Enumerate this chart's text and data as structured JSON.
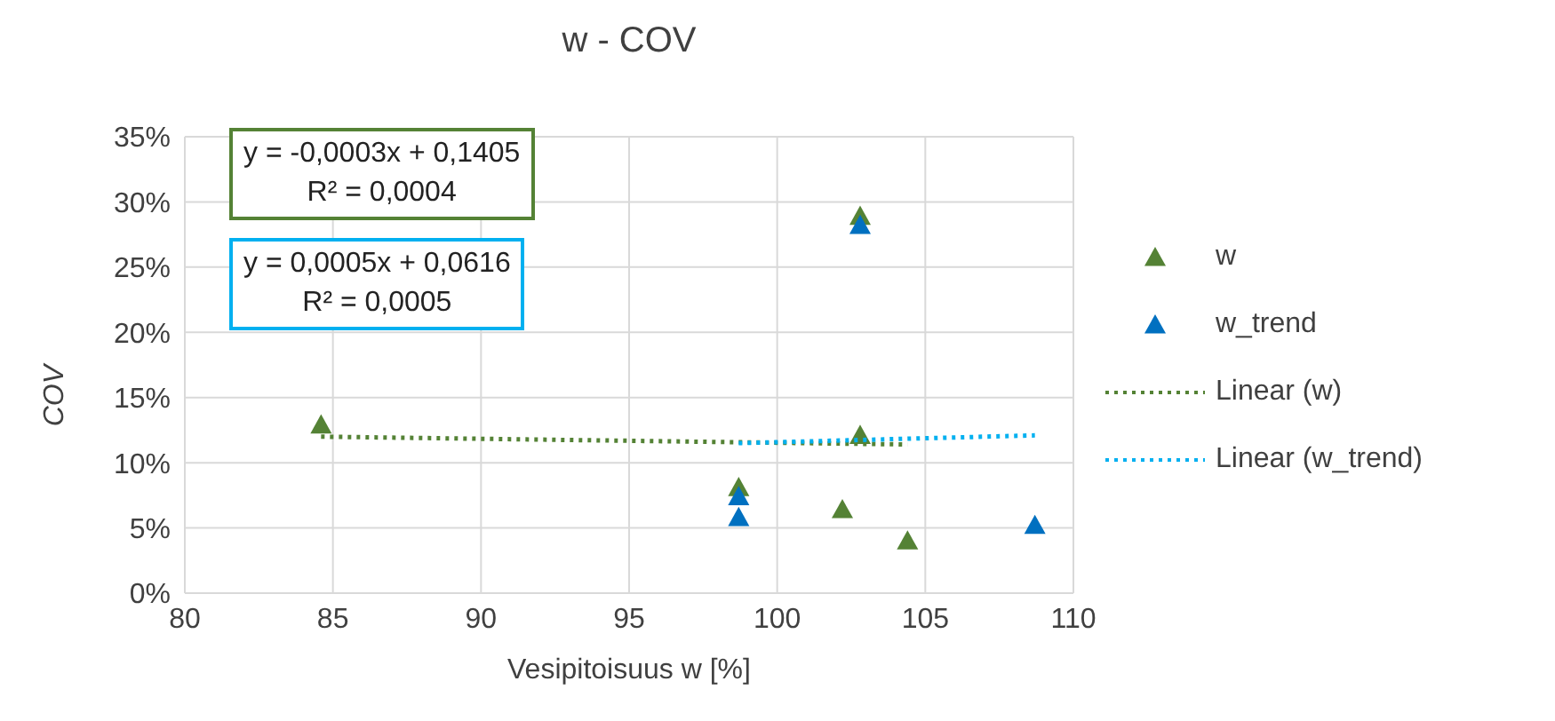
{
  "chart_data": {
    "type": "scatter",
    "title": "w - COV",
    "xlabel": "Vesipitoisuus w [%]",
    "ylabel": "COV",
    "xlim": [
      80,
      110
    ],
    "xticks": [
      80,
      85,
      90,
      95,
      100,
      105,
      110
    ],
    "ylim": [
      0,
      35
    ],
    "yticks": [
      {
        "value": 0,
        "label": "0%"
      },
      {
        "value": 5,
        "label": "5%"
      },
      {
        "value": 10,
        "label": "10%"
      },
      {
        "value": 15,
        "label": "15%"
      },
      {
        "value": 20,
        "label": "20%"
      },
      {
        "value": 25,
        "label": "25%"
      },
      {
        "value": 30,
        "label": "30%"
      },
      {
        "value": 35,
        "label": "35%"
      }
    ],
    "grid": true,
    "legend": "right",
    "marker": "triangle",
    "series": [
      {
        "name": "w",
        "color": "#548235",
        "x": [
          84.6,
          98.7,
          102.8,
          102.8,
          102.2,
          104.4
        ],
        "values": [
          12.9,
          8.1,
          28.9,
          12.1,
          6.4,
          4.0
        ]
      },
      {
        "name": "w_trend",
        "color": "#0070c0",
        "x": [
          98.7,
          98.7,
          102.8,
          108.7
        ],
        "values": [
          7.4,
          5.8,
          28.2,
          5.2
        ]
      },
      {
        "name": "Linear (w)",
        "type": "line",
        "color": "#548235",
        "line_style": "dotted",
        "marker": "none",
        "x": [
          84.6,
          104.4
        ],
        "values": [
          12.0,
          11.4
        ]
      },
      {
        "name": "Linear (w_trend)",
        "type": "line",
        "color": "#00b0f0",
        "line_style": "dotted",
        "marker": "none",
        "x": [
          98.7,
          108.7
        ],
        "values": [
          11.5,
          12.1
        ]
      }
    ],
    "annotations": [
      "y = -0,0003x + 0,1405\nR² = 0,0004",
      "y = 0,0005x + 0,0616\nR² = 0,0005"
    ]
  }
}
